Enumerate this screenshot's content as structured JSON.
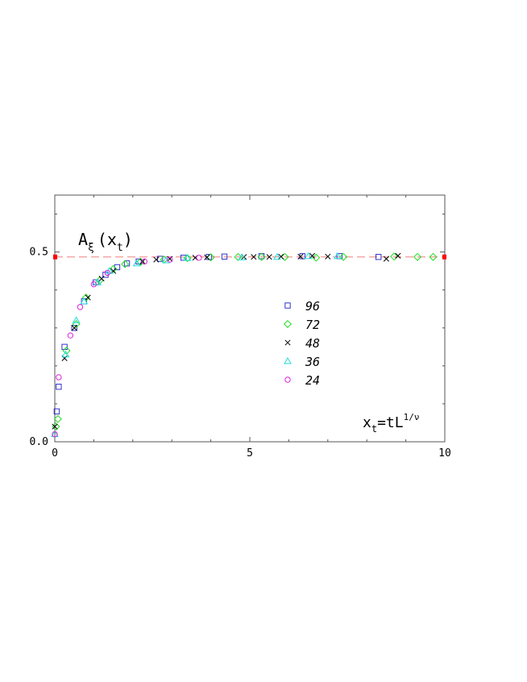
{
  "chart_data": {
    "type": "scatter",
    "xlim": [
      0,
      10
    ],
    "ylim": [
      0,
      0.65
    ],
    "xticks": [
      0,
      5,
      10
    ],
    "xtick_labels": [
      "0",
      "5",
      "10"
    ],
    "yticks": [
      0,
      0.5
    ],
    "ytick_labels": [
      "0.0",
      "0.5"
    ],
    "grid": false,
    "legend_placement": "center",
    "ylabel": {
      "base": "A",
      "sub": "ξ",
      "arg": "(x",
      "argsub": "t",
      "close": ")"
    },
    "xlabel": {
      "base": "x",
      "sub": "t",
      "eq": "=tL",
      "sup": "1/ν"
    },
    "reference_line": {
      "y": 0.487,
      "color": "#f08080",
      "style": "dashed",
      "end_marker_color": "#ff0000"
    },
    "series": [
      {
        "name": "96",
        "marker": "square",
        "color": "#3333cc",
        "x": [
          0.05,
          0.1,
          0.25,
          0.5,
          0.75,
          1.05,
          1.3,
          1.6,
          1.85,
          2.15,
          2.7,
          3.3,
          3.95,
          4.35,
          5.3,
          6.35,
          7.3,
          8.3
        ],
        "y": [
          0.08,
          0.145,
          0.25,
          0.3,
          0.37,
          0.42,
          0.44,
          0.46,
          0.47,
          0.475,
          0.482,
          0.485,
          0.487,
          0.488,
          0.489,
          0.489,
          0.489,
          0.487
        ]
      },
      {
        "name": "72",
        "marker": "diamond",
        "color": "#22dd22",
        "x": [
          0.03,
          0.08,
          0.3,
          0.55,
          0.8,
          1.15,
          1.5,
          1.8,
          2.2,
          2.8,
          3.4,
          4.0,
          4.7,
          5.3,
          5.9,
          6.7,
          7.4,
          8.7,
          9.3,
          9.7
        ],
        "y": [
          0.04,
          0.06,
          0.24,
          0.31,
          0.38,
          0.425,
          0.455,
          0.468,
          0.474,
          0.48,
          0.484,
          0.486,
          0.487,
          0.487,
          0.487,
          0.485,
          0.487,
          0.488,
          0.487,
          0.487
        ]
      },
      {
        "name": "48",
        "marker": "cross",
        "color": "#000000",
        "x": [
          0.0,
          0.25,
          0.5,
          0.85,
          1.2,
          1.5,
          2.25,
          2.6,
          2.95,
          3.6,
          3.9,
          4.85,
          5.1,
          5.5,
          5.8,
          6.3,
          6.6,
          7.0,
          8.5,
          8.8
        ],
        "y": [
          0.04,
          0.22,
          0.3,
          0.38,
          0.43,
          0.45,
          0.475,
          0.48,
          0.482,
          0.485,
          0.486,
          0.487,
          0.487,
          0.487,
          0.488,
          0.488,
          0.49,
          0.488,
          0.482,
          0.49
        ]
      },
      {
        "name": "36",
        "marker": "triangle",
        "color": "#22dddd",
        "x": [
          0.0,
          0.28,
          0.55,
          0.75,
          1.1,
          1.4,
          2.1,
          2.85,
          3.4,
          4.8,
          5.7,
          6.5,
          7.25
        ],
        "y": [
          0.02,
          0.23,
          0.32,
          0.37,
          0.42,
          0.45,
          0.47,
          0.478,
          0.484,
          0.486,
          0.487,
          0.489,
          0.489
        ]
      },
      {
        "name": "24",
        "marker": "circle",
        "color": "#dd22dd",
        "x": [
          0.0,
          0.1,
          0.4,
          0.65,
          1.0,
          1.35,
          2.3,
          2.95,
          3.7
        ],
        "y": [
          0.02,
          0.17,
          0.28,
          0.355,
          0.415,
          0.445,
          0.475,
          0.48,
          0.485
        ]
      }
    ]
  }
}
